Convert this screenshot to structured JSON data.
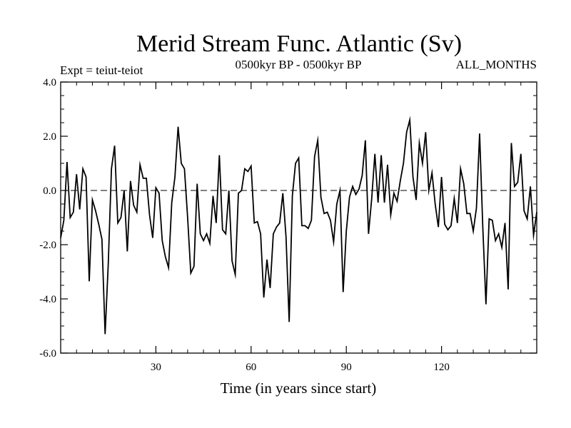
{
  "chart_data": {
    "type": "line",
    "title": "Merid Stream Func. Atlantic (Sv)",
    "experiment_label": "Expt = teiut-teiot",
    "period_label": "0500kyr BP - 0500kyr BP",
    "season_label": "ALL_MONTHS",
    "xlabel": "Time (in years since start)",
    "ylabel": "",
    "xlim": [
      0,
      150
    ],
    "ylim": [
      -6.0,
      4.0
    ],
    "x_ticks": [
      30,
      60,
      90,
      120
    ],
    "x_tick_labels": [
      "30",
      "60",
      "90",
      "120"
    ],
    "y_ticks": [
      4.0,
      2.0,
      0.0,
      -2.0,
      -4.0,
      -6.0
    ],
    "y_tick_labels": [
      "4.0",
      "2.0",
      "0.0",
      "-2.0",
      "-4.0",
      "-6.0"
    ],
    "x_minor_step": 5,
    "y_minor_step": 0.5,
    "reference_line": 0.0,
    "grid": false,
    "colors": {
      "line": "#000000",
      "axis": "#000000",
      "background": "#ffffff"
    },
    "series": [
      {
        "name": "Merid Stream Func. Atlantic",
        "x_start": 0,
        "x_step": 1,
        "values": [
          -1.75,
          -1.1,
          1.05,
          -1.0,
          -0.8,
          0.6,
          -0.7,
          0.8,
          0.5,
          -3.35,
          -0.35,
          -0.75,
          -1.25,
          -1.8,
          -5.3,
          -2.7,
          0.8,
          1.65,
          -1.2,
          -1.0,
          0.0,
          -2.25,
          0.35,
          -0.55,
          -0.8,
          0.95,
          0.45,
          0.45,
          -0.9,
          -1.75,
          0.1,
          -0.1,
          -1.85,
          -2.45,
          -2.85,
          -0.45,
          0.5,
          2.35,
          1.0,
          0.8,
          -1.0,
          -3.05,
          -2.8,
          0.25,
          -1.6,
          -1.85,
          -1.6,
          -1.95,
          -0.2,
          -1.2,
          1.3,
          -1.45,
          -1.6,
          0.0,
          -2.6,
          -3.1,
          -0.1,
          0.0,
          0.8,
          0.7,
          0.9,
          -1.2,
          -1.15,
          -1.6,
          -3.95,
          -2.55,
          -3.6,
          -1.6,
          -1.35,
          -1.2,
          -0.1,
          -1.7,
          -4.85,
          -0.2,
          1.0,
          1.2,
          -1.3,
          -1.3,
          -1.4,
          -1.1,
          1.25,
          1.85,
          -0.25,
          -0.85,
          -0.8,
          -1.1,
          -1.9,
          -0.5,
          0.0,
          -3.75,
          -1.5,
          -0.25,
          0.15,
          -0.15,
          0.05,
          0.55,
          1.85,
          -1.6,
          -0.3,
          1.35,
          -0.45,
          1.3,
          -0.45,
          0.95,
          -0.9,
          -0.1,
          -0.4,
          0.35,
          1.0,
          2.15,
          2.6,
          0.5,
          -0.35,
          1.75,
          1.0,
          2.15,
          0.0,
          0.65,
          -0.5,
          -1.35,
          0.5,
          -1.25,
          -1.45,
          -1.3,
          -0.3,
          -1.2,
          0.8,
          0.25,
          -0.85,
          -0.85,
          -1.5,
          -0.65,
          2.1,
          -1.35,
          -4.2,
          -1.05,
          -1.1,
          -1.85,
          -1.6,
          -2.1,
          -1.2,
          -3.65,
          1.75,
          0.15,
          0.3,
          1.35,
          -0.75,
          -1.05,
          0.15,
          -1.65,
          -0.8
        ]
      }
    ]
  }
}
